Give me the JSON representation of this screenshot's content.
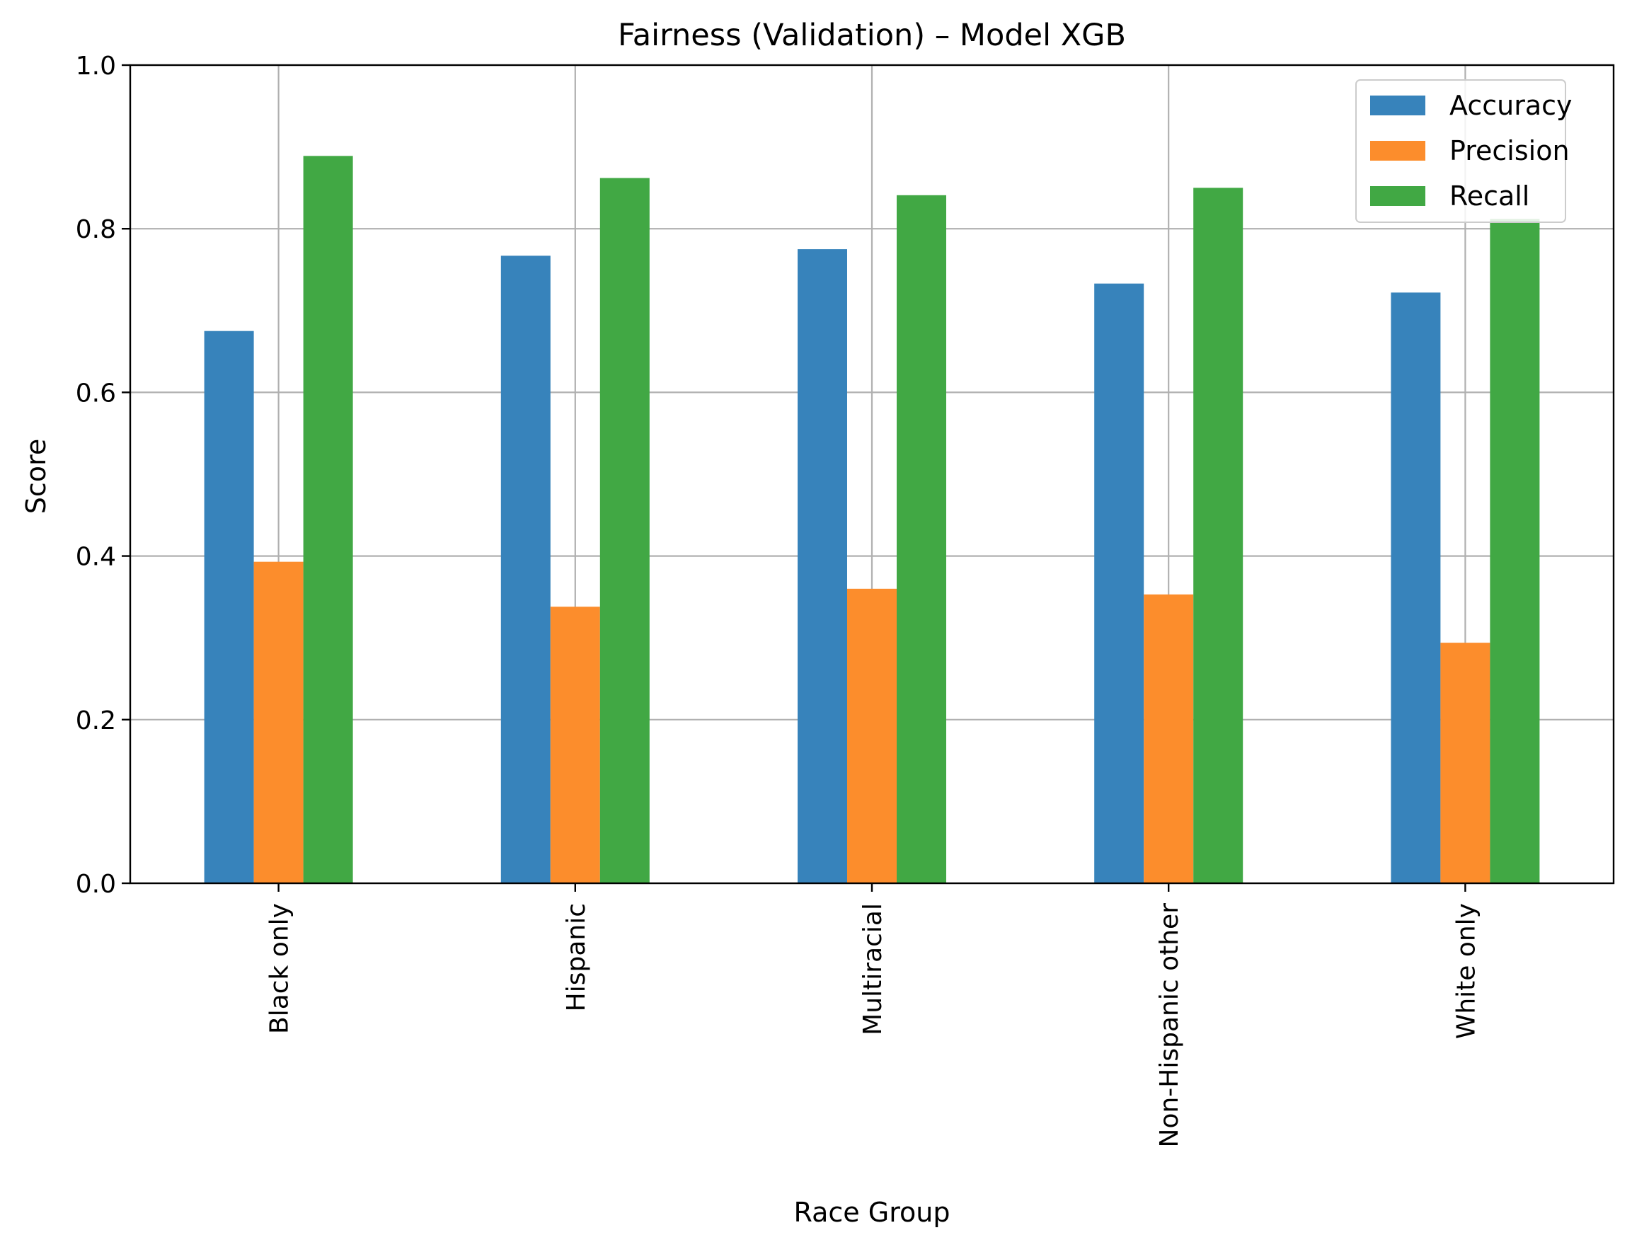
{
  "chart_data": {
    "type": "bar",
    "title": "Fairness (Validation) – Model XGB",
    "xlabel": "Race Group",
    "ylabel": "Score",
    "ylim": [
      0,
      1.0
    ],
    "yticks": [
      "0.0",
      "0.2",
      "0.4",
      "0.6",
      "0.8",
      "1.0"
    ],
    "categories": [
      "Black only",
      "Hispanic",
      "Multiracial",
      "Non-Hispanic other",
      "White only"
    ],
    "series": [
      {
        "name": "Accuracy",
        "color": "#3783bb",
        "values": [
          0.675,
          0.767,
          0.775,
          0.733,
          0.722
        ]
      },
      {
        "name": "Precision",
        "color": "#fc8d2c",
        "values": [
          0.393,
          0.338,
          0.36,
          0.353,
          0.294
        ]
      },
      {
        "name": "Recall",
        "color": "#41a844",
        "values": [
          0.889,
          0.862,
          0.841,
          0.85,
          0.812
        ]
      }
    ],
    "grid": true,
    "legend_position": "top-right"
  }
}
